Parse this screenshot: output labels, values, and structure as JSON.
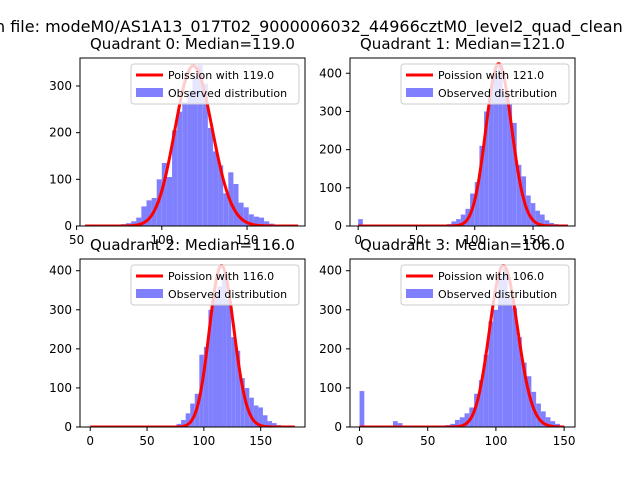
{
  "suptitle": "n file: modeM0/AS1A13_017T02_9000006032_44966cztM0_level2_quad_clean",
  "colors": {
    "hist": "#8080ff",
    "poisson": "#ff0000"
  },
  "chart_data": [
    {
      "type": "bar",
      "title": "Quadrant 0: Median=119.0",
      "xlim": [
        52,
        184
      ],
      "ylim": [
        0,
        360
      ],
      "xticks": [
        50,
        100,
        150
      ],
      "yticks": [
        0,
        100,
        200,
        300
      ],
      "legend": [
        "Poission with 119.0",
        "Observed distribution"
      ],
      "legend_position": "upper right",
      "poisson": {
        "mean": 119.0,
        "x_range": [
          55,
          180
        ],
        "peak": 343
      },
      "histogram": {
        "bin_width": 3,
        "bins": [
          [
            55,
            1
          ],
          [
            58,
            1
          ],
          [
            61,
            1
          ],
          [
            64,
            1
          ],
          [
            67,
            1
          ],
          [
            70,
            2
          ],
          [
            73,
            3
          ],
          [
            76,
            4
          ],
          [
            79,
            6
          ],
          [
            82,
            10
          ],
          [
            85,
            18
          ],
          [
            88,
            42
          ],
          [
            91,
            55
          ],
          [
            94,
            60
          ],
          [
            97,
            100
          ],
          [
            100,
            135
          ],
          [
            103,
            105
          ],
          [
            106,
            205
          ],
          [
            109,
            245
          ],
          [
            112,
            265
          ],
          [
            115,
            290
          ],
          [
            118,
            320
          ],
          [
            121,
            345
          ],
          [
            124,
            305
          ],
          [
            127,
            210
          ],
          [
            130,
            160
          ],
          [
            133,
            130
          ],
          [
            136,
            70
          ],
          [
            139,
            115
          ],
          [
            142,
            90
          ],
          [
            145,
            50
          ],
          [
            148,
            40
          ],
          [
            151,
            25
          ],
          [
            154,
            20
          ],
          [
            157,
            18
          ],
          [
            160,
            10
          ],
          [
            163,
            5
          ],
          [
            166,
            2
          ],
          [
            169,
            1
          ],
          [
            172,
            1
          ],
          [
            175,
            1
          ]
        ]
      }
    },
    {
      "type": "bar",
      "title": "Quadrant 1: Median=121.0",
      "xlim": [
        -7,
        186
      ],
      "ylim": [
        0,
        440
      ],
      "xticks": [
        0,
        50,
        100,
        150
      ],
      "yticks": [
        0,
        100,
        200,
        300,
        400
      ],
      "legend": [
        "Poission with 121.0",
        "Observed distribution"
      ],
      "legend_position": "upper right",
      "poisson": {
        "mean": 121.0,
        "x_range": [
          0,
          180
        ],
        "peak": 425
      },
      "histogram": {
        "bin_width": 4,
        "bins": [
          [
            0,
            18
          ],
          [
            4,
            3
          ],
          [
            8,
            2
          ],
          [
            12,
            1
          ],
          [
            16,
            1
          ],
          [
            20,
            1
          ],
          [
            24,
            1
          ],
          [
            28,
            1
          ],
          [
            32,
            1
          ],
          [
            36,
            1
          ],
          [
            40,
            1
          ],
          [
            44,
            1
          ],
          [
            48,
            1
          ],
          [
            52,
            1
          ],
          [
            56,
            1
          ],
          [
            60,
            1
          ],
          [
            64,
            1
          ],
          [
            68,
            2
          ],
          [
            72,
            3
          ],
          [
            76,
            5
          ],
          [
            80,
            12
          ],
          [
            84,
            18
          ],
          [
            88,
            30
          ],
          [
            92,
            45
          ],
          [
            96,
            85
          ],
          [
            100,
            115
          ],
          [
            104,
            210
          ],
          [
            108,
            300
          ],
          [
            112,
            360
          ],
          [
            116,
            395
          ],
          [
            120,
            420
          ],
          [
            124,
            345
          ],
          [
            128,
            320
          ],
          [
            132,
            270
          ],
          [
            136,
            160
          ],
          [
            140,
            130
          ],
          [
            144,
            80
          ],
          [
            148,
            60
          ],
          [
            152,
            40
          ],
          [
            156,
            30
          ],
          [
            160,
            15
          ],
          [
            164,
            8
          ],
          [
            168,
            5
          ],
          [
            172,
            2
          ],
          [
            176,
            1
          ]
        ]
      }
    },
    {
      "type": "bar",
      "title": "Quadrant 2: Median=116.0",
      "xlim": [
        -9,
        189
      ],
      "ylim": [
        0,
        430
      ],
      "xticks": [
        0,
        50,
        100,
        150
      ],
      "yticks": [
        0,
        100,
        200,
        300,
        400
      ],
      "legend": [
        "Poission with 116.0",
        "Observed distribution"
      ],
      "legend_position": "upper right",
      "poisson": {
        "mean": 116.0,
        "x_range": [
          0,
          180
        ],
        "peak": 413
      },
      "histogram": {
        "bin_width": 4,
        "bins": [
          [
            0,
            1
          ],
          [
            4,
            1
          ],
          [
            8,
            1
          ],
          [
            12,
            1
          ],
          [
            16,
            1
          ],
          [
            20,
            1
          ],
          [
            24,
            1
          ],
          [
            28,
            1
          ],
          [
            32,
            1
          ],
          [
            36,
            1
          ],
          [
            40,
            1
          ],
          [
            44,
            1
          ],
          [
            48,
            1
          ],
          [
            52,
            1
          ],
          [
            56,
            1
          ],
          [
            60,
            1
          ],
          [
            64,
            1
          ],
          [
            68,
            2
          ],
          [
            72,
            3
          ],
          [
            76,
            8
          ],
          [
            80,
            18
          ],
          [
            84,
            35
          ],
          [
            88,
            60
          ],
          [
            92,
            85
          ],
          [
            96,
            185
          ],
          [
            100,
            205
          ],
          [
            104,
            300
          ],
          [
            108,
            340
          ],
          [
            112,
            360
          ],
          [
            116,
            390
          ],
          [
            120,
            325
          ],
          [
            124,
            230
          ],
          [
            128,
            195
          ],
          [
            132,
            125
          ],
          [
            136,
            100
          ],
          [
            140,
            75
          ],
          [
            144,
            55
          ],
          [
            148,
            50
          ],
          [
            152,
            30
          ],
          [
            156,
            15
          ],
          [
            160,
            10
          ],
          [
            164,
            5
          ],
          [
            168,
            3
          ],
          [
            172,
            2
          ],
          [
            176,
            1
          ]
        ]
      }
    },
    {
      "type": "bar",
      "title": "Quadrant 3: Median=106.0",
      "xlim": [
        -7,
        158
      ],
      "ylim": [
        0,
        430
      ],
      "xticks": [
        0,
        50,
        100,
        150
      ],
      "yticks": [
        0,
        100,
        200,
        300,
        400
      ],
      "legend": [
        "Poission with 106.0",
        "Observed distribution"
      ],
      "legend_position": "upper right",
      "poisson": {
        "mean": 106.0,
        "x_range": [
          0,
          150
        ],
        "peak": 413
      },
      "histogram": {
        "bin_width": 3.5,
        "bins": [
          [
            0,
            92
          ],
          [
            3.5,
            3
          ],
          [
            7,
            1
          ],
          [
            10.5,
            1
          ],
          [
            14,
            1
          ],
          [
            17.5,
            1
          ],
          [
            21,
            2
          ],
          [
            24.5,
            15
          ],
          [
            28,
            10
          ],
          [
            31.5,
            2
          ],
          [
            35,
            3
          ],
          [
            38.5,
            2
          ],
          [
            42,
            2
          ],
          [
            45.5,
            1
          ],
          [
            49,
            2
          ],
          [
            52.5,
            1
          ],
          [
            56,
            2
          ],
          [
            59.5,
            3
          ],
          [
            63,
            5
          ],
          [
            66.5,
            8
          ],
          [
            70,
            18
          ],
          [
            73.5,
            25
          ],
          [
            77,
            35
          ],
          [
            80.5,
            50
          ],
          [
            84,
            85
          ],
          [
            87.5,
            120
          ],
          [
            91,
            185
          ],
          [
            94.5,
            270
          ],
          [
            98,
            300
          ],
          [
            101.5,
            385
          ],
          [
            105,
            405
          ],
          [
            108.5,
            330
          ],
          [
            112,
            305
          ],
          [
            115.5,
            230
          ],
          [
            119,
            165
          ],
          [
            122.5,
            130
          ],
          [
            126,
            90
          ],
          [
            129.5,
            60
          ],
          [
            133,
            40
          ],
          [
            136.5,
            25
          ],
          [
            140,
            15
          ],
          [
            143.5,
            8
          ],
          [
            147,
            3
          ]
        ]
      }
    }
  ]
}
